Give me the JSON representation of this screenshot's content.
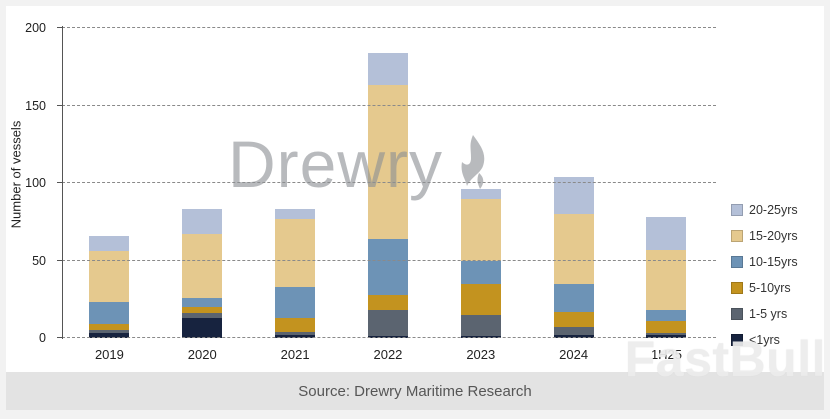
{
  "source_text": "Source: Drewry Maritime Research",
  "watermarks": {
    "drewry": "Drewry",
    "fastbull": "FastBull"
  },
  "chart_data": {
    "type": "bar",
    "stacked": true,
    "title": "",
    "xlabel": "",
    "ylabel": "Number of vessels",
    "ylim": [
      0,
      200
    ],
    "yticks": [
      0,
      50,
      100,
      150,
      200
    ],
    "grid": "horizontal-dashed",
    "legend_position": "right",
    "categories": [
      "2019",
      "2020",
      "2021",
      "2022",
      "2023",
      "2024",
      "1H25"
    ],
    "series": [
      {
        "name": "<1yrs",
        "color": "#17233f",
        "values": [
          3,
          13,
          2,
          1,
          1,
          2,
          2
        ]
      },
      {
        "name": "1-5 yrs",
        "color": "#5b6470",
        "values": [
          2,
          3,
          2,
          17,
          14,
          5,
          1
        ]
      },
      {
        "name": "5-10yrs",
        "color": "#c3931f",
        "values": [
          4,
          4,
          9,
          10,
          20,
          10,
          8
        ]
      },
      {
        "name": "10-15yrs",
        "color": "#6d93b6",
        "values": [
          14,
          6,
          20,
          36,
          15,
          18,
          7
        ]
      },
      {
        "name": "15-20yrs",
        "color": "#e5c98e",
        "values": [
          33,
          41,
          44,
          99,
          40,
          45,
          39
        ]
      },
      {
        "name": "20-25yrs",
        "color": "#b4c0d8",
        "values": [
          10,
          16,
          6,
          21,
          6,
          24,
          21
        ]
      }
    ],
    "totals": [
      66,
      83,
      83,
      184,
      96,
      104,
      78
    ]
  }
}
